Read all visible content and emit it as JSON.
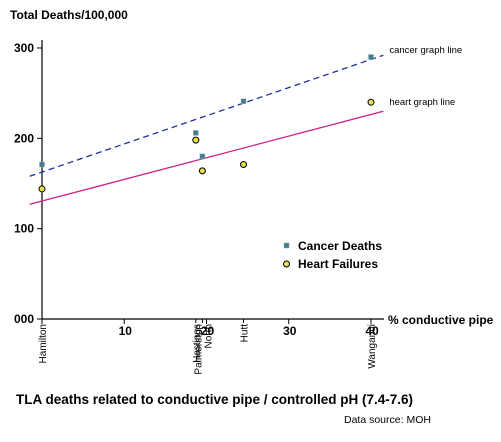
{
  "chart_data": {
    "type": "scatter",
    "y_title": "Total Deaths/100,000",
    "x_title": "% conductive pipe",
    "caption": "TLA deaths related to conductive pipe / controlled pH  (7.4-7.6)",
    "source": "Data source: MOH",
    "xlim": [
      0,
      40
    ],
    "ylim": [
      0,
      300
    ],
    "x_ticks": [
      0,
      10,
      20,
      30,
      40
    ],
    "x_tick_labels": [
      "",
      "10",
      "20",
      "30",
      "40"
    ],
    "y_ticks": [
      0,
      100,
      200,
      300
    ],
    "y_tick_labels": [
      "000",
      "100",
      "200",
      "300"
    ],
    "grid": false,
    "legend_position": "right",
    "towns": [
      {
        "name": "Hamilton",
        "x": 0
      },
      {
        "name": "Hastings",
        "x": 18.7
      },
      {
        "name": "Palmerston North",
        "x": 19.5
      },
      {
        "name": "Hutt",
        "x": 24.5
      },
      {
        "name": "Wanganui",
        "x": 40
      }
    ],
    "series": [
      {
        "name": "Cancer Deaths",
        "marker": "square",
        "color": "#3f7f8f",
        "points": [
          {
            "x": 0,
            "y": 171
          },
          {
            "x": 18.7,
            "y": 206
          },
          {
            "x": 19.5,
            "y": 180
          },
          {
            "x": 24.5,
            "y": 241
          },
          {
            "x": 40,
            "y": 290
          }
        ]
      },
      {
        "name": "Heart Failures",
        "marker": "circle",
        "color": "#e8e04a",
        "points": [
          {
            "x": 0,
            "y": 144
          },
          {
            "x": 18.7,
            "y": 198
          },
          {
            "x": 19.5,
            "y": 164
          },
          {
            "x": 24.5,
            "y": 171
          },
          {
            "x": 40,
            "y": 240
          }
        ]
      }
    ],
    "trend_lines": [
      {
        "label": "cancer graph line",
        "color": "#1f2fa0",
        "style": "dashed",
        "from": {
          "x": -1.5,
          "y": 158
        },
        "to": {
          "x": 41.5,
          "y": 292
        }
      },
      {
        "label": "heart graph line",
        "color": "#cc2288",
        "style": "solid",
        "from": {
          "x": -1.5,
          "y": 127
        },
        "to": {
          "x": 41.5,
          "y": 230
        }
      }
    ]
  }
}
